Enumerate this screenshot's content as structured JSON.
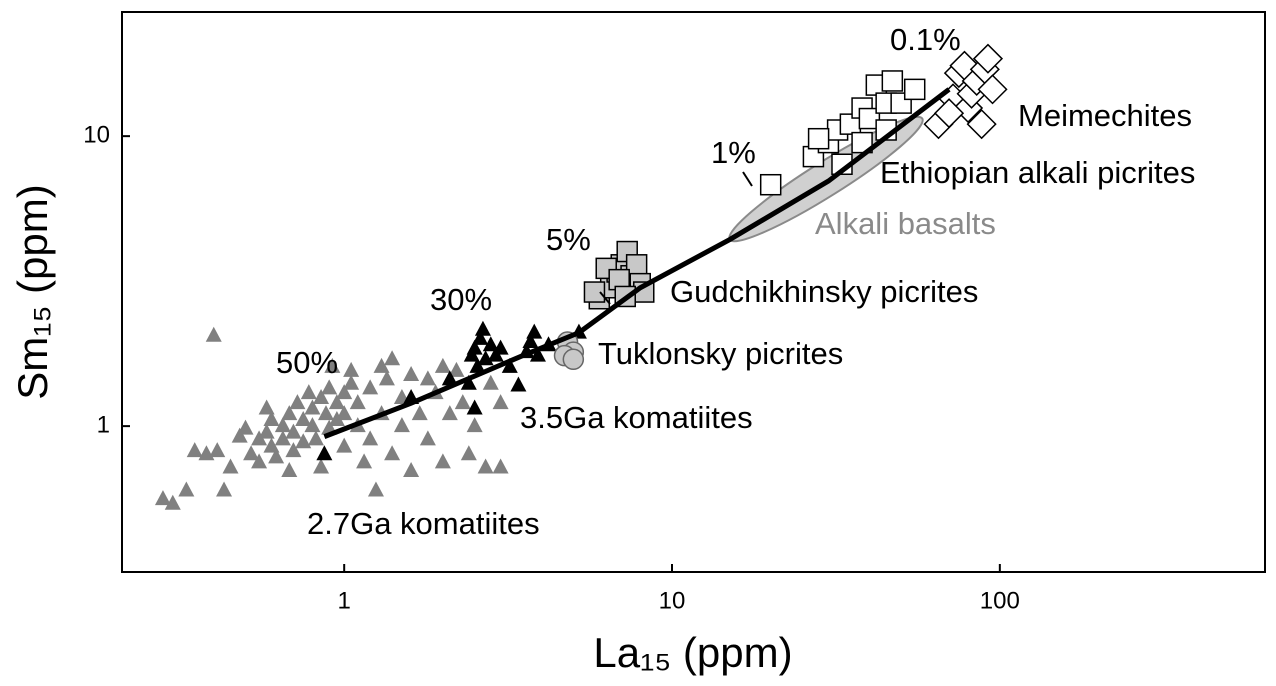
{
  "chart_data": {
    "type": "scatter",
    "x_label": "La₁₅ (ppm)",
    "y_label": "Sm₁₅ (ppm)",
    "xscale": "log",
    "yscale": "log",
    "xlim": [
      0.21,
      644
    ],
    "ylim": [
      0.314,
      26.8
    ],
    "xticks": [
      1,
      10,
      100
    ],
    "yticks": [
      1,
      10
    ],
    "series": [
      {
        "name": "2.7Ga komatiites",
        "marker": "triangle",
        "color": "#808080",
        "x": [
          0.28,
          0.3,
          0.33,
          0.35,
          0.38,
          0.4,
          0.41,
          0.43,
          0.45,
          0.48,
          0.5,
          0.52,
          0.55,
          0.55,
          0.58,
          0.6,
          0.6,
          0.62,
          0.65,
          0.65,
          0.68,
          0.7,
          0.7,
          0.72,
          0.75,
          0.75,
          0.78,
          0.8,
          0.8,
          0.82,
          0.85,
          0.88,
          0.9,
          0.9,
          0.95,
          0.95,
          1.0,
          1.0,
          1.0,
          1.05,
          1.1,
          1.1,
          1.15,
          1.2,
          1.2,
          1.25,
          1.3,
          1.35,
          1.4,
          1.5,
          1.5,
          1.6,
          1.6,
          1.7,
          1.8,
          1.9,
          2.0,
          2.0,
          2.1,
          2.3,
          2.4,
          2.5,
          2.7,
          2.8,
          3.0,
          3.0,
          0.58,
          0.68,
          0.85,
          1.3,
          1.4,
          1.05,
          0.92,
          2.2,
          1.8
        ],
        "y": [
          0.56,
          0.54,
          0.6,
          0.82,
          0.8,
          2.05,
          0.82,
          0.6,
          0.72,
          0.92,
          0.98,
          0.8,
          0.75,
          0.9,
          0.95,
          1.05,
          0.85,
          0.78,
          1.0,
          0.9,
          1.1,
          0.95,
          0.82,
          1.2,
          1.05,
          0.88,
          1.3,
          1.15,
          1.0,
          0.9,
          1.25,
          1.1,
          1.35,
          0.98,
          1.2,
          1.05,
          1.3,
          1.1,
          0.85,
          1.4,
          1.2,
          1.0,
          0.75,
          1.35,
          0.9,
          0.6,
          1.1,
          1.45,
          0.8,
          1.25,
          1.0,
          1.5,
          0.7,
          1.1,
          0.9,
          1.3,
          1.6,
          0.75,
          1.1,
          1.2,
          0.8,
          1.0,
          0.72,
          1.4,
          0.72,
          1.2,
          1.15,
          0.7,
          0.72,
          1.6,
          1.7,
          1.55,
          1.6,
          1.55,
          1.45
        ]
      },
      {
        "name": "3.5Ga komatiites",
        "marker": "triangle",
        "color": "#000000",
        "x": [
          0.87,
          1.6,
          2.1,
          2.4,
          2.45,
          2.5,
          2.55,
          2.6,
          2.65,
          2.7,
          2.8,
          2.9,
          3.0,
          3.2,
          3.4,
          3.6,
          3.7,
          3.8,
          3.9,
          2.5,
          5.2,
          4.2
        ],
        "y": [
          0.8,
          1.25,
          1.45,
          1.4,
          1.75,
          1.85,
          1.6,
          2.0,
          2.15,
          1.7,
          1.9,
          1.75,
          1.85,
          1.6,
          1.38,
          1.8,
          1.95,
          2.1,
          1.75,
          1.15,
          2.1,
          1.9
        ]
      },
      {
        "name": "Tuklonsky picrites",
        "marker": "circle",
        "color": "#c8c8c8",
        "x": [
          4.8,
          5.0,
          4.7,
          5.0
        ],
        "y": [
          1.95,
          1.8,
          1.75,
          1.7
        ]
      },
      {
        "name": "Gudchikhinsky picrites",
        "marker": "square",
        "color": "#c8c8c8",
        "x": [
          6.0,
          6.5,
          6.8,
          7.0,
          7.3,
          7.5,
          7.8,
          8.0,
          8.2,
          6.3,
          6.9,
          5.8,
          7.2
        ],
        "y": [
          2.75,
          3.0,
          3.4,
          3.6,
          4.0,
          3.3,
          3.6,
          3.1,
          2.9,
          3.5,
          3.2,
          2.9,
          2.8
        ]
      },
      {
        "name": "Ethiopian alkali picrites",
        "marker": "square",
        "color": "#ffffff",
        "x": [
          20,
          27,
          30,
          32,
          33,
          35,
          38,
          40,
          42,
          45,
          47,
          50,
          55,
          45,
          38,
          28
        ],
        "y": [
          6.8,
          8.5,
          9.5,
          10.5,
          8.0,
          11.0,
          12.5,
          11.5,
          15,
          13,
          15.5,
          13,
          14.5,
          10.5,
          9.5,
          9.8
        ]
      },
      {
        "name": "Meimechites",
        "marker": "diamond",
        "color": "#ffffff",
        "x": [
          65,
          72,
          75,
          78,
          80,
          82,
          85,
          88,
          90,
          92,
          70,
          95
        ],
        "y": [
          11,
          13.5,
          16.5,
          17.5,
          12.5,
          14,
          15.5,
          11,
          17,
          18.5,
          12,
          14.5
        ]
      }
    ],
    "field": {
      "name": "Alkali basalts",
      "color": "#d0d0d0",
      "x": [
        15,
        58
      ],
      "y": [
        4.4,
        11.5
      ]
    },
    "melt_curve": {
      "color": "#000000",
      "x": [
        0.87,
        1.6,
        3.5,
        5.2,
        8,
        15,
        30,
        70
      ],
      "y": [
        0.92,
        1.2,
        1.75,
        2.1,
        3.0,
        4.4,
        7.0,
        14.5
      ]
    },
    "melt_labels": [
      "50%",
      "30%",
      "5%",
      "1%",
      "0.1%"
    ]
  }
}
